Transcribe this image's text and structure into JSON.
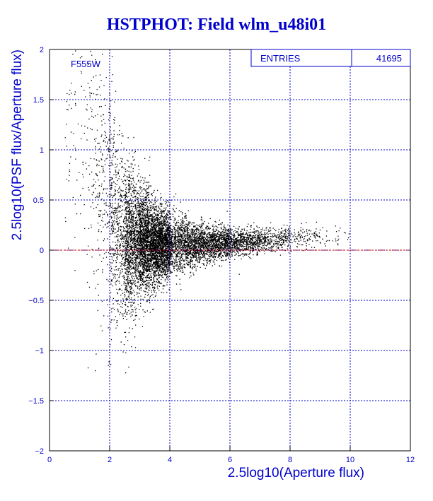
{
  "title": "HSTPHOT: Field wlm_u48i01",
  "chart_data": {
    "type": "scatter",
    "xlabel": "2.5log10(Aperture flux)",
    "ylabel": "2.5log10(PSF flux/Aperture flux)",
    "xlim": [
      0,
      12
    ],
    "ylim": [
      -2,
      2
    ],
    "xticks": [
      0,
      2,
      4,
      6,
      8,
      10,
      12
    ],
    "yticks": [
      -2,
      -1.5,
      -1,
      -0.5,
      0,
      0.5,
      1,
      1.5,
      2
    ],
    "ytick_labels": [
      "−2",
      "−1.5",
      "−1",
      "−0.5",
      "0",
      "0.5",
      "1",
      "1.5",
      "2"
    ],
    "grid": true,
    "reference_line_y": 0,
    "annotation": "F555W",
    "stats": {
      "label": "ENTRIES",
      "value": "41695"
    },
    "colors": {
      "axes": "#0000cc",
      "points": "#000000",
      "reference_line": "#cc0000"
    },
    "density_profile": [
      {
        "x": 0.5,
        "y_center": 0.9,
        "spread": 0.55,
        "weight": 0.005
      },
      {
        "x": 1.0,
        "y_center": 0.7,
        "spread": 0.65,
        "weight": 0.01
      },
      {
        "x": 1.5,
        "y_center": 0.4,
        "spread": 0.75,
        "weight": 0.025
      },
      {
        "x": 2.0,
        "y_center": 0.15,
        "spread": 0.6,
        "weight": 0.06
      },
      {
        "x": 2.5,
        "y_center": 0.1,
        "spread": 0.4,
        "weight": 0.14
      },
      {
        "x": 3.0,
        "y_center": 0.08,
        "spread": 0.28,
        "weight": 0.2
      },
      {
        "x": 3.5,
        "y_center": 0.06,
        "spread": 0.2,
        "weight": 0.18
      },
      {
        "x": 4.0,
        "y_center": 0.06,
        "spread": 0.15,
        "weight": 0.14
      },
      {
        "x": 5.0,
        "y_center": 0.06,
        "spread": 0.1,
        "weight": 0.12
      },
      {
        "x": 6.0,
        "y_center": 0.08,
        "spread": 0.07,
        "weight": 0.07
      },
      {
        "x": 7.0,
        "y_center": 0.1,
        "spread": 0.06,
        "weight": 0.035
      },
      {
        "x": 8.0,
        "y_center": 0.12,
        "spread": 0.06,
        "weight": 0.012
      },
      {
        "x": 9.0,
        "y_center": 0.14,
        "spread": 0.05,
        "weight": 0.003
      }
    ]
  }
}
